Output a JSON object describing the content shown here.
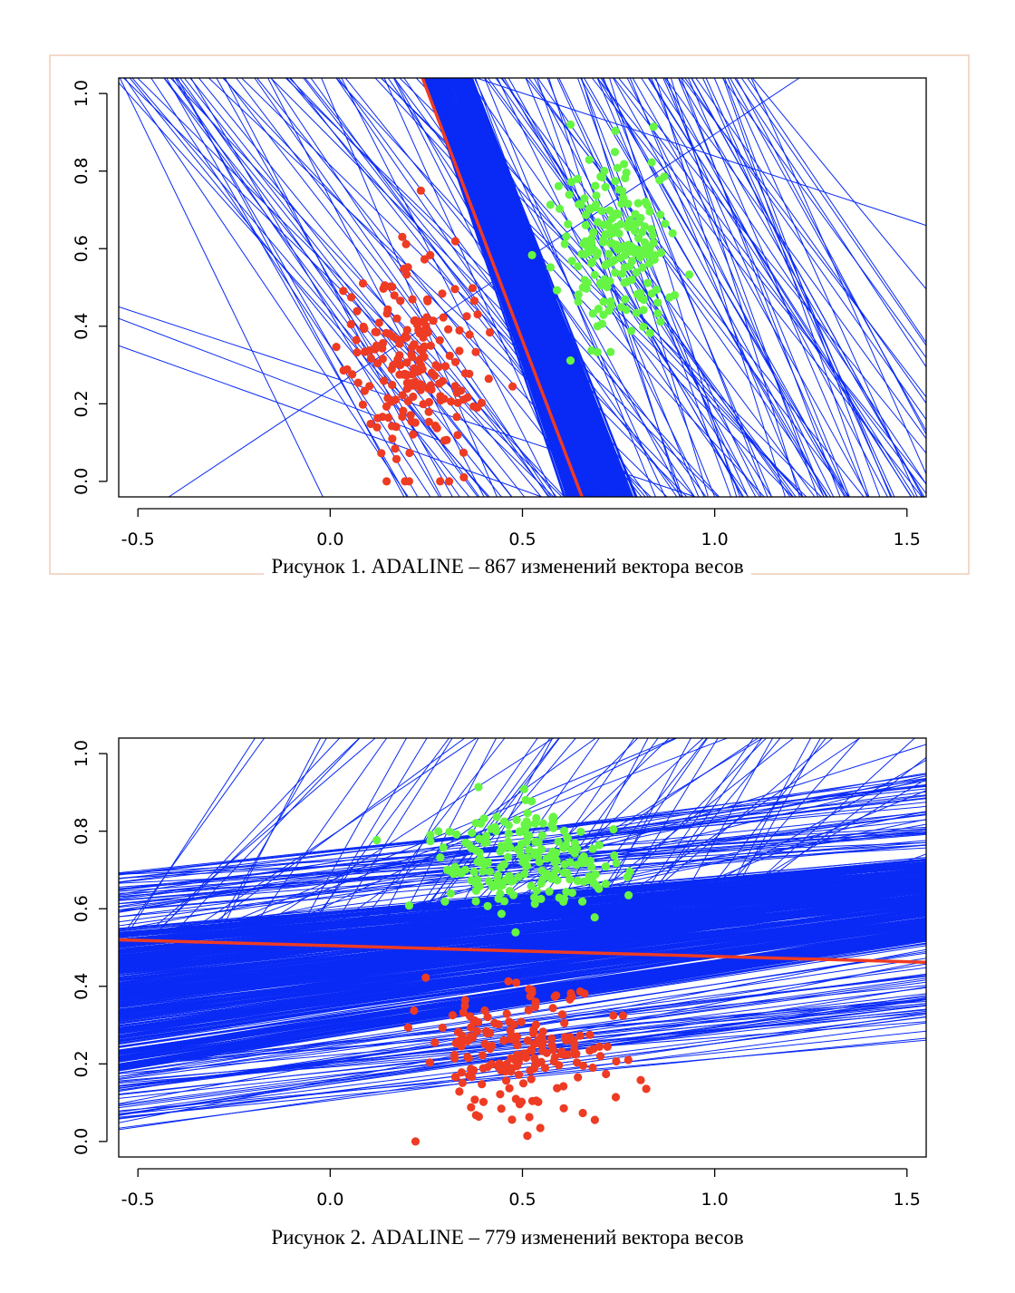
{
  "figures": [
    {
      "caption": "Рисунок 1. ADALINE – 867 изменений вектора весов",
      "chart_data": {
        "type": "scatter",
        "xlim": [
          -0.55,
          1.55
        ],
        "ylim": [
          -0.04,
          1.04
        ],
        "x_ticks": [
          "-0.5",
          "0.0",
          "0.5",
          "1.0",
          "1.5"
        ],
        "x_tick_values": [
          -0.5,
          0.0,
          0.5,
          1.0,
          1.5
        ],
        "y_ticks": [
          "0.0",
          "0.2",
          "0.4",
          "0.6",
          "0.8",
          "1.0"
        ],
        "y_tick_values": [
          0.0,
          0.2,
          0.4,
          0.6,
          0.8,
          1.0
        ],
        "grid": false,
        "colors": {
          "class_a": "#ee3b24",
          "class_b": "#66f544",
          "lines": "#0a2af5",
          "final_line": "#ee3b24"
        },
        "class_a": {
          "cx": 0.22,
          "cy": 0.3,
          "sx": 0.08,
          "sy": 0.12,
          "count": 200
        },
        "class_b": {
          "cx": 0.75,
          "cy": 0.62,
          "sx": 0.07,
          "sy": 0.11,
          "count": 200
        },
        "final_line": {
          "x1": 0.24,
          "y1": 1.04,
          "x2": 0.655,
          "y2": -0.04
        },
        "dense_band": {
          "x_top": [
            0.24,
            0.37
          ],
          "x_bottom": [
            0.6,
            0.8
          ]
        },
        "weight_updates": 867
      }
    },
    {
      "caption": "Рисунок 2. ADALINE – 779 изменений вектора весов",
      "chart_data": {
        "type": "scatter",
        "xlim": [
          -0.55,
          1.55
        ],
        "ylim": [
          -0.04,
          1.04
        ],
        "x_ticks": [
          "-0.5",
          "0.0",
          "0.5",
          "1.0",
          "1.5"
        ],
        "x_tick_values": [
          -0.5,
          0.0,
          0.5,
          1.0,
          1.5
        ],
        "y_ticks": [
          "0.0",
          "0.2",
          "0.4",
          "0.6",
          "0.8",
          "1.0"
        ],
        "y_tick_values": [
          0.0,
          0.2,
          0.4,
          0.6,
          0.8,
          1.0
        ],
        "grid": false,
        "colors": {
          "class_a": "#ee3b24",
          "class_b": "#66f544",
          "lines": "#0a2af5",
          "final_line": "#ee3b24"
        },
        "class_a": {
          "cx": 0.48,
          "cy": 0.24,
          "sx": 0.13,
          "sy": 0.08,
          "count": 200
        },
        "class_b": {
          "cx": 0.52,
          "cy": 0.73,
          "sx": 0.12,
          "sy": 0.07,
          "count": 200
        },
        "final_line": {
          "x1": -0.55,
          "y1": 0.52,
          "x2": 1.55,
          "y2": 0.462
        },
        "dense_band": {
          "y_left": [
            0.18,
            0.55
          ],
          "y_right": [
            0.5,
            0.74
          ]
        },
        "weight_updates": 779
      }
    }
  ]
}
